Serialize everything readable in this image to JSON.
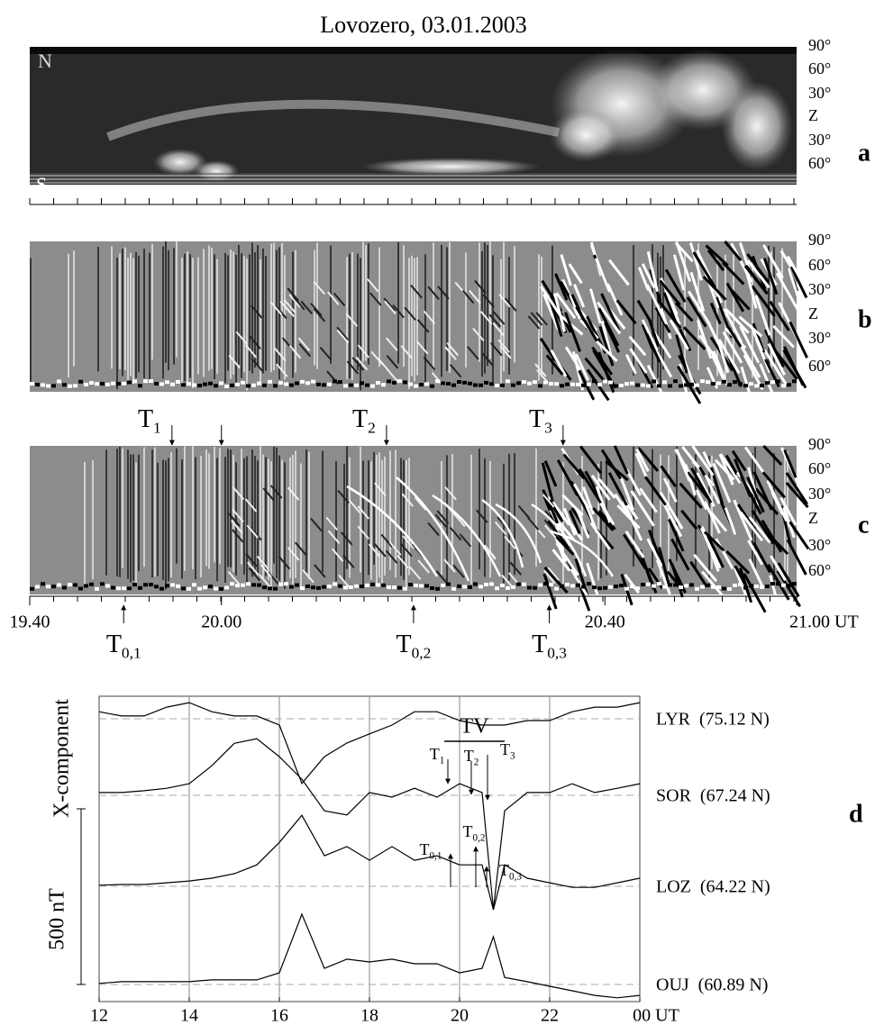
{
  "title": "Lovozero, 03.01.2003",
  "keogram": {
    "panel_labels": [
      "a",
      "b",
      "c"
    ],
    "zenith_ticks": [
      "90°",
      "60°",
      "30°",
      "Z",
      "30°",
      "60°"
    ],
    "corner_labels": {
      "north": "N",
      "south": "S"
    },
    "xlim": [
      19.6667,
      21
    ],
    "xticks": [
      {
        "value": 19.6667,
        "label": "19.40"
      },
      {
        "value": 20,
        "label": "20.00"
      },
      {
        "value": 20.6667,
        "label": "20.40"
      },
      {
        "value": 21,
        "label": "21.00 UT"
      }
    ],
    "onsets_above": [
      {
        "x": 19.914,
        "main": "T",
        "sub": "1"
      },
      {
        "x": 20.0
      },
      {
        "x": 20.287,
        "main": "T",
        "sub": "2"
      },
      {
        "x": 20.594,
        "main": "T",
        "sub": "3"
      }
    ],
    "onsets_below": [
      {
        "x": 19.83,
        "main": "T",
        "sub": "0,1"
      },
      {
        "x": 20.334,
        "main": "T",
        "sub": "0,2"
      },
      {
        "x": 20.57,
        "main": "T",
        "sub": "0,3"
      }
    ]
  },
  "chart_data": {
    "type": "line",
    "panel_label": "d",
    "y_label": "X-component",
    "xlim": [
      12,
      24
    ],
    "xticks": [
      12,
      14,
      16,
      18,
      20,
      22,
      {
        "value": 24,
        "label": "00 UT"
      }
    ],
    "grid": true,
    "scale_bar": {
      "value": 500,
      "label": "500 nT"
    },
    "x": [
      12,
      12.5,
      13,
      13.5,
      14,
      14.5,
      15,
      15.5,
      16,
      16.5,
      17,
      17.5,
      18,
      18.5,
      19,
      19.5,
      20,
      20.5,
      20.75,
      21,
      21.5,
      22,
      22.5,
      23,
      23.5,
      24
    ],
    "series": [
      {
        "name": "LYR  (75.12 N)",
        "color": "#000000",
        "values": [
          20,
          8,
          8,
          33,
          46,
          20,
          8,
          8,
          -18,
          -184,
          -108,
          -69,
          -43,
          -18,
          20,
          20,
          -5,
          -18,
          -18,
          -18,
          -5,
          -5,
          20,
          33,
          33,
          46
        ]
      },
      {
        "name": "SOR  (67.24 N)",
        "color": "#000000",
        "values": [
          8,
          8,
          13,
          20,
          33,
          84,
          148,
          161,
          110,
          46,
          -44,
          -56,
          8,
          -5,
          20,
          -5,
          33,
          8,
          -325,
          -44,
          8,
          8,
          33,
          8,
          20,
          33
        ]
      },
      {
        "name": "LOZ  (64.22 N)",
        "color": "#000000",
        "values": [
          3,
          5,
          5,
          10,
          15,
          23,
          36,
          61,
          125,
          202,
          87,
          113,
          74,
          113,
          74,
          87,
          61,
          61,
          -67,
          61,
          23,
          10,
          -3,
          -3,
          10,
          23
        ]
      },
      {
        "name": "OUJ  (60.89 N)",
        "color": "#000000",
        "values": [
          3,
          8,
          8,
          8,
          8,
          13,
          13,
          13,
          33,
          200,
          46,
          72,
          64,
          72,
          59,
          59,
          33,
          46,
          136,
          20,
          8,
          -5,
          -18,
          -31,
          -38,
          -31
        ]
      }
    ],
    "annotation_bar": {
      "label": "TV",
      "x": [
        19.66,
        21.0
      ]
    },
    "arrows_down": [
      {
        "x": 19.74,
        "main": "T",
        "sub": "1"
      },
      {
        "x": 20.26,
        "main": "T",
        "sub": "2"
      },
      {
        "x": 20.62,
        "main": "T",
        "sub": "3"
      }
    ],
    "arrows_up": [
      {
        "x": 19.8,
        "main": "T",
        "sub": "0,1"
      },
      {
        "x": 20.36,
        "main": "T",
        "sub": "0,2"
      },
      {
        "x": 20.6,
        "main": "T",
        "sub": "0,3"
      }
    ]
  }
}
